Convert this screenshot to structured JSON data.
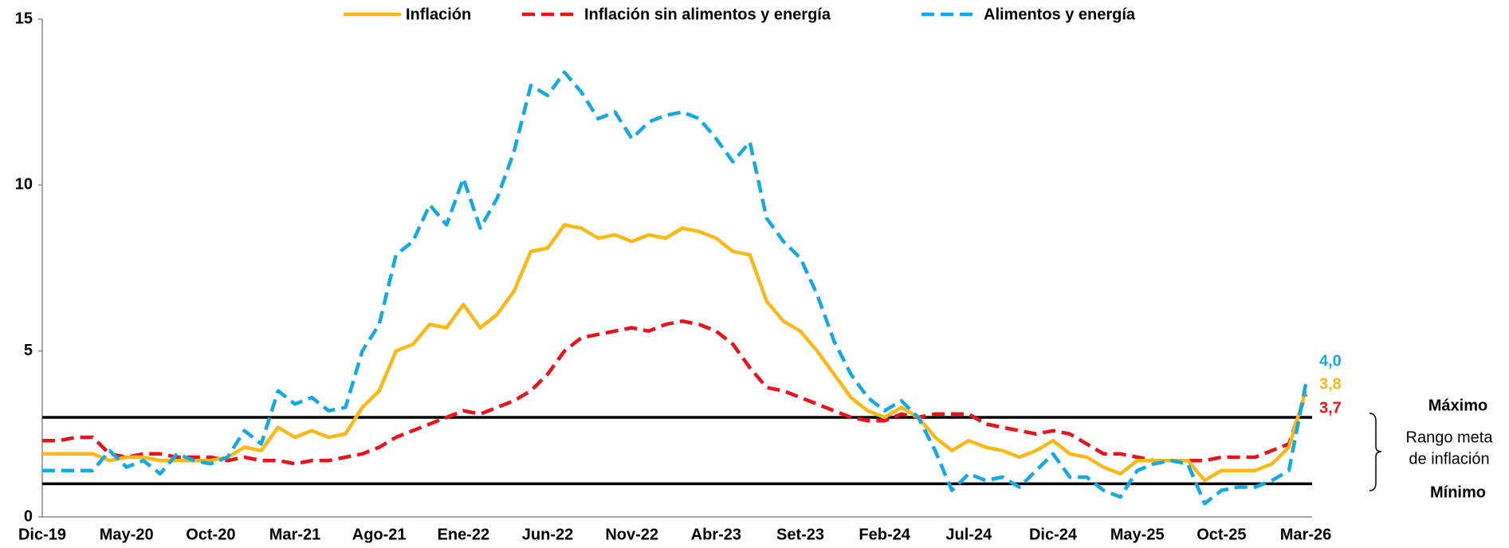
{
  "chart_data": {
    "type": "line",
    "categories": [
      "Dic-19",
      null,
      null,
      null,
      null,
      "May-20",
      null,
      null,
      null,
      null,
      "Oct-20",
      null,
      null,
      null,
      null,
      "Mar-21",
      null,
      null,
      null,
      null,
      "Ago-21",
      null,
      null,
      null,
      null,
      "Ene-22",
      null,
      null,
      null,
      null,
      "Jun-22",
      null,
      null,
      null,
      null,
      "Nov-22",
      null,
      null,
      null,
      null,
      "Abr-23",
      null,
      null,
      null,
      null,
      "Set-23",
      null,
      null,
      null,
      null,
      "Feb-24",
      null,
      null,
      null,
      null,
      "Jul-24",
      null,
      null,
      null,
      null,
      "Dic-24",
      null,
      null,
      null,
      null,
      "May-25",
      null,
      null,
      null,
      null,
      "Oct-25",
      null,
      null,
      null,
      null,
      "Mar-26"
    ],
    "series": [
      {
        "name": "Inflación",
        "color": "#fbb917",
        "dash": "solid",
        "end_label": "3,8",
        "values": [
          1.9,
          1.9,
          1.9,
          1.9,
          1.7,
          1.8,
          1.8,
          1.7,
          1.7,
          1.7,
          1.7,
          1.8,
          2.1,
          2.0,
          2.7,
          2.4,
          2.6,
          2.4,
          2.5,
          3.3,
          3.8,
          5.0,
          5.2,
          5.8,
          5.7,
          6.4,
          5.7,
          6.1,
          6.8,
          8.0,
          8.1,
          8.8,
          8.7,
          8.4,
          8.5,
          8.3,
          8.5,
          8.4,
          8.7,
          8.6,
          8.4,
          8.0,
          7.9,
          6.5,
          5.9,
          5.6,
          5.0,
          4.3,
          3.6,
          3.2,
          3.0,
          3.3,
          3.0,
          2.4,
          2.0,
          2.3,
          2.1,
          2.0,
          1.8,
          2.0,
          2.3,
          1.9,
          1.8,
          1.5,
          1.3,
          1.7,
          1.7,
          1.7,
          1.7,
          1.1,
          1.4,
          1.4,
          1.4,
          1.6,
          2.1,
          3.8
        ]
      },
      {
        "name": "Inflación sin alimentos y energía",
        "color": "#e8131b",
        "dash": "dashed",
        "end_label": "3,7",
        "values": [
          2.3,
          2.3,
          2.4,
          2.4,
          1.9,
          1.8,
          1.9,
          1.9,
          1.8,
          1.8,
          1.8,
          1.7,
          1.8,
          1.7,
          1.7,
          1.6,
          1.7,
          1.7,
          1.8,
          1.9,
          2.1,
          2.4,
          2.6,
          2.8,
          3.0,
          3.2,
          3.1,
          3.3,
          3.5,
          3.8,
          4.3,
          5.0,
          5.4,
          5.5,
          5.6,
          5.7,
          5.6,
          5.8,
          5.9,
          5.8,
          5.6,
          5.2,
          4.5,
          3.9,
          3.8,
          3.6,
          3.4,
          3.2,
          3.0,
          2.9,
          2.9,
          3.1,
          3.0,
          3.1,
          3.1,
          3.1,
          2.8,
          2.7,
          2.6,
          2.5,
          2.6,
          2.5,
          2.2,
          1.9,
          1.9,
          1.8,
          1.7,
          1.7,
          1.7,
          1.7,
          1.8,
          1.8,
          1.8,
          2.0,
          2.2,
          3.7
        ]
      },
      {
        "name": "Alimentos y energía",
        "color": "#14a9e2",
        "dash": "dashed",
        "end_label": "4,0",
        "values": [
          1.4,
          1.4,
          1.4,
          1.4,
          2.0,
          1.5,
          1.7,
          1.3,
          1.9,
          1.7,
          1.6,
          1.8,
          2.6,
          2.2,
          3.8,
          3.4,
          3.6,
          3.2,
          3.3,
          5.0,
          5.8,
          7.9,
          8.3,
          9.4,
          8.8,
          10.2,
          8.7,
          9.6,
          11.0,
          13.0,
          12.7,
          13.4,
          12.8,
          12.0,
          12.2,
          11.4,
          11.9,
          12.1,
          12.2,
          12.0,
          11.4,
          10.7,
          11.3,
          9.0,
          8.3,
          7.8,
          6.7,
          5.3,
          4.3,
          3.6,
          3.2,
          3.5,
          3.0,
          2.0,
          0.8,
          1.3,
          1.1,
          1.2,
          0.9,
          1.4,
          1.9,
          1.2,
          1.2,
          0.8,
          0.6,
          1.4,
          1.6,
          1.7,
          1.6,
          0.4,
          0.8,
          0.9,
          0.9,
          1.1,
          1.4,
          4.0
        ]
      }
    ],
    "ylim": [
      0,
      15
    ],
    "yticks": [
      0,
      5,
      10,
      15
    ],
    "grid": false,
    "legend": "top",
    "hlines": [
      {
        "value": 3,
        "label": "Máximo"
      },
      {
        "value": 1,
        "label": "Mínimo"
      }
    ],
    "range_label": [
      "Rango meta",
      "de inflación"
    ]
  }
}
